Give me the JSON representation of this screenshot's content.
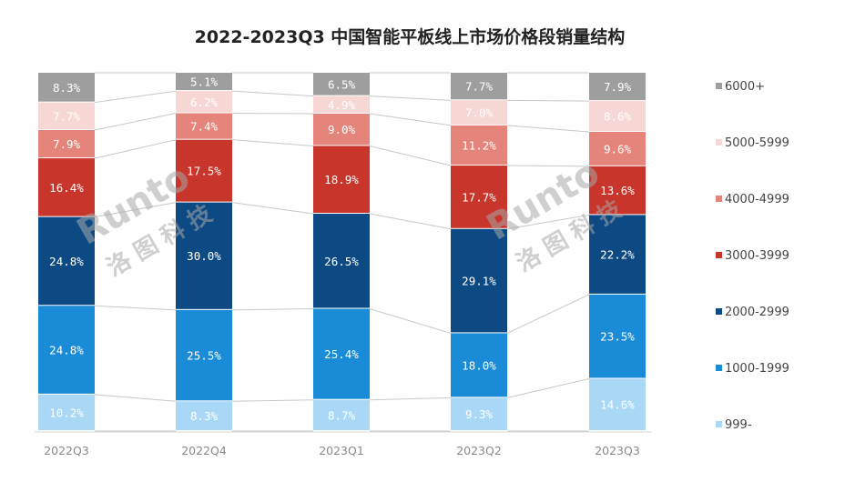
{
  "chart_data": {
    "type": "bar",
    "stacked": true,
    "normalized": true,
    "title": "2022-2023Q3 中国智能平板线上市场价格段销量结构",
    "categories": [
      "2022Q3",
      "2022Q4",
      "2023Q1",
      "2023Q2",
      "2023Q3"
    ],
    "series": [
      {
        "name": "999-",
        "color": "#a9d8f7",
        "text_color": "#ffffff",
        "values": [
          10.2,
          8.3,
          8.7,
          9.3,
          14.6
        ],
        "labels": [
          "10.2%",
          "8.3%",
          "8.7%",
          "9.3%",
          "14.6%"
        ]
      },
      {
        "name": "1000-1999",
        "color": "#1a8bd6",
        "text_color": "#ffffff",
        "values": [
          24.8,
          25.5,
          25.4,
          18.0,
          23.5
        ],
        "labels": [
          "24.8%",
          "25.5%",
          "25.4%",
          "18.0%",
          "23.5%"
        ]
      },
      {
        "name": "2000-2999",
        "color": "#0d4a84",
        "text_color": "#ffffff",
        "values": [
          24.8,
          30.0,
          26.5,
          29.1,
          22.2
        ],
        "labels": [
          "24.8%",
          "30.0%",
          "26.5%",
          "29.1%",
          "22.2%"
        ]
      },
      {
        "name": "3000-3999",
        "color": "#c8352a",
        "text_color": "#ffffff",
        "values": [
          16.4,
          17.5,
          18.9,
          17.7,
          13.6
        ],
        "labels": [
          "16.4%",
          "17.5%",
          "18.9%",
          "17.7%",
          "13.6%"
        ]
      },
      {
        "name": "4000-4999",
        "color": "#e4847b",
        "text_color": "#ffffff",
        "values": [
          7.9,
          7.4,
          9.0,
          11.2,
          9.6
        ],
        "labels": [
          "7.9%",
          "7.4%",
          "9.0%",
          "11.2%",
          "9.6%"
        ]
      },
      {
        "name": "5000-5999",
        "color": "#f6d7d4",
        "text_color": "#ffffff",
        "values": [
          7.7,
          6.2,
          4.9,
          7.0,
          8.6
        ],
        "labels": [
          "7.7%",
          "6.2%",
          "4.9%",
          "7.0%",
          "8.6%"
        ]
      },
      {
        "name": "6000+",
        "color": "#9e9e9e",
        "text_color": "#ffffff",
        "values": [
          8.3,
          5.1,
          6.5,
          7.7,
          7.9
        ],
        "labels": [
          "8.3%",
          "5.1%",
          "6.5%",
          "7.7%",
          "7.9%"
        ]
      }
    ],
    "legend_position": "right",
    "legend_order": [
      "6000+",
      "5000-5999",
      "4000-4999",
      "3000-3999",
      "2000-2999",
      "1000-1999",
      "999-"
    ],
    "grid": false,
    "connector_lines": true,
    "connector_color": "#c8c8c8"
  },
  "watermark": {
    "logo": "Runto",
    "name": "洛图科技"
  }
}
